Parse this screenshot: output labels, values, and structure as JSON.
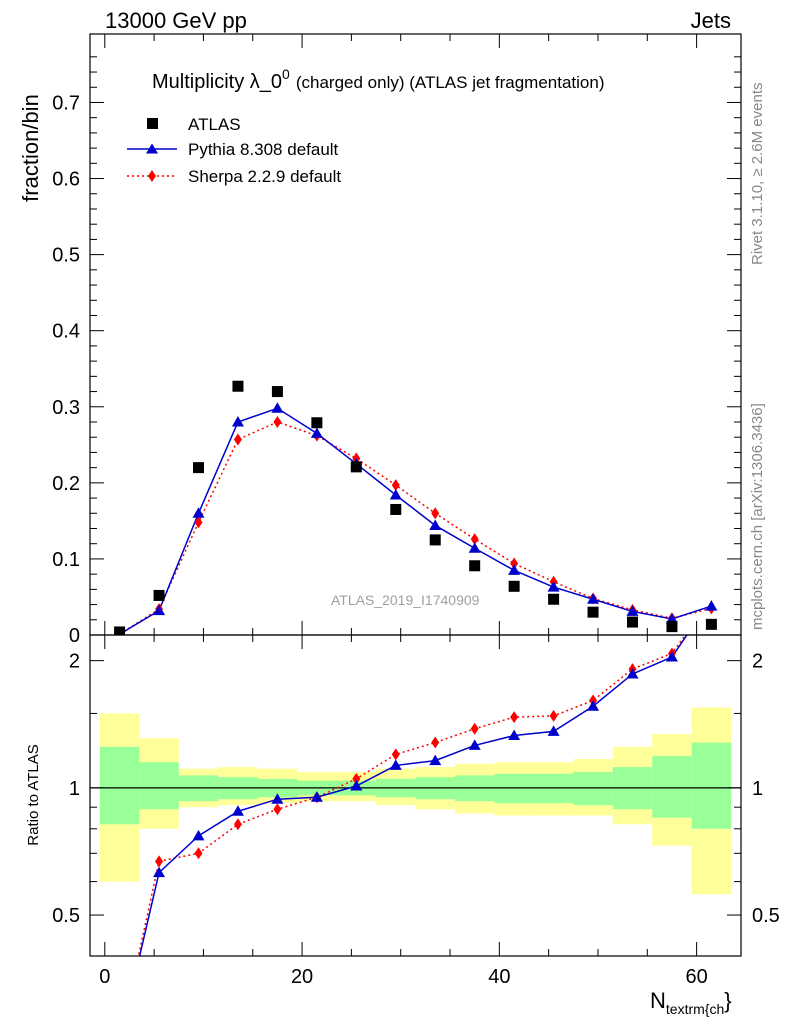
{
  "header": {
    "left": "13000 GeV pp",
    "right": "Jets"
  },
  "side_labels": {
    "rivet": "Rivet 3.1.10, ≥ 2.6M events",
    "mcplots": "mcplots.cern.ch [arXiv:1306.3436]"
  },
  "chart_data": {
    "type": "scatter",
    "title_main": "Multiplicity λ_0",
    "title_sup": "0",
    "title_tail": "(charged only) (ATLAS jet fragmentation)",
    "xlabel_main": "N",
    "xlabel_sub": "textrm{ch",
    "xlabel_close": "}",
    "ylabel": "fraction/bin",
    "ratio_ylabel": "Ratio to ATLAS",
    "analysis_tag": "ATLAS_2019_I1740909",
    "xlim": [
      -1.5,
      64.5
    ],
    "ylim": [
      0,
      0.79
    ],
    "ratio_ylim": [
      0.4,
      2.3
    ],
    "x_ticks": [
      0,
      20,
      40,
      60
    ],
    "y_ticks": [
      0,
      0.1,
      0.2,
      0.3,
      0.4,
      0.5,
      0.6,
      0.7
    ],
    "y_tick_labels": [
      "0",
      "0.1",
      "0.2",
      "0.3",
      "0.4",
      "0.5",
      "0.6",
      "0.7"
    ],
    "ratio_ticks": [
      0.5,
      1,
      2
    ],
    "ratio_tick_labels": [
      "0.5",
      "1",
      "2"
    ],
    "bins": [
      [
        -0.5,
        3.5
      ],
      [
        3.5,
        7.5
      ],
      [
        7.5,
        11.5
      ],
      [
        11.5,
        15.5
      ],
      [
        15.5,
        19.5
      ],
      [
        19.5,
        23.5
      ],
      [
        23.5,
        27.5
      ],
      [
        27.5,
        31.5
      ],
      [
        31.5,
        35.5
      ],
      [
        35.5,
        39.5
      ],
      [
        39.5,
        43.5
      ],
      [
        43.5,
        47.5
      ],
      [
        47.5,
        51.5
      ],
      [
        51.5,
        55.5
      ],
      [
        55.5,
        59.5
      ],
      [
        59.5,
        63.5
      ]
    ],
    "x": [
      1.5,
      5.5,
      9.5,
      13.5,
      17.5,
      21.5,
      25.5,
      29.5,
      33.5,
      37.5,
      41.5,
      45.5,
      49.5,
      53.5,
      57.5,
      61.5
    ],
    "series": [
      {
        "name": "ATLAS",
        "color": "#000000",
        "marker": "square",
        "values": [
          0.004,
          0.052,
          0.22,
          0.327,
          0.32,
          0.279,
          0.221,
          0.165,
          0.125,
          0.091,
          0.064,
          0.047,
          0.03,
          0.017,
          0.011,
          0.014
        ]
      },
      {
        "name": "Pythia 8.308 default",
        "color": "#0000cc",
        "marker": "triangle",
        "line": "solid",
        "values": [
          0.001,
          0.032,
          0.16,
          0.28,
          0.298,
          0.265,
          0.225,
          0.184,
          0.144,
          0.114,
          0.085,
          0.063,
          0.047,
          0.031,
          0.021,
          0.038
        ],
        "ratio": [
          0.25,
          0.63,
          0.77,
          0.88,
          0.94,
          0.95,
          1.01,
          1.13,
          1.16,
          1.26,
          1.33,
          1.36,
          1.56,
          1.86,
          2.04,
          2.8
        ]
      },
      {
        "name": "Sherpa 2.2.9 default",
        "color": "#ff0000",
        "marker": "diamond",
        "line": "dotted",
        "values": [
          0.001,
          0.034,
          0.148,
          0.257,
          0.28,
          0.262,
          0.232,
          0.197,
          0.16,
          0.126,
          0.094,
          0.07,
          0.048,
          0.033,
          0.022,
          0.035
        ],
        "ratio": [
          0.25,
          0.67,
          0.7,
          0.82,
          0.89,
          0.95,
          1.05,
          1.2,
          1.28,
          1.38,
          1.47,
          1.48,
          1.61,
          1.91,
          2.08,
          2.8
        ]
      }
    ],
    "bands": {
      "green": {
        "color": "#99ff99",
        "lo": [
          0.82,
          0.89,
          0.93,
          0.94,
          0.95,
          0.96,
          0.96,
          0.95,
          0.94,
          0.93,
          0.92,
          0.92,
          0.91,
          0.89,
          0.85,
          0.8
        ],
        "hi": [
          1.25,
          1.15,
          1.07,
          1.06,
          1.05,
          1.04,
          1.04,
          1.05,
          1.06,
          1.07,
          1.08,
          1.08,
          1.09,
          1.12,
          1.19,
          1.28
        ]
      },
      "yellow": {
        "color": "#ffff99",
        "lo": [
          0.6,
          0.8,
          0.9,
          0.91,
          0.92,
          0.93,
          0.93,
          0.91,
          0.89,
          0.87,
          0.86,
          0.86,
          0.86,
          0.82,
          0.73,
          0.56
        ],
        "hi": [
          1.5,
          1.31,
          1.11,
          1.12,
          1.11,
          1.09,
          1.09,
          1.11,
          1.12,
          1.14,
          1.15,
          1.15,
          1.17,
          1.25,
          1.34,
          1.55
        ]
      }
    },
    "legend_position": "top-left"
  }
}
